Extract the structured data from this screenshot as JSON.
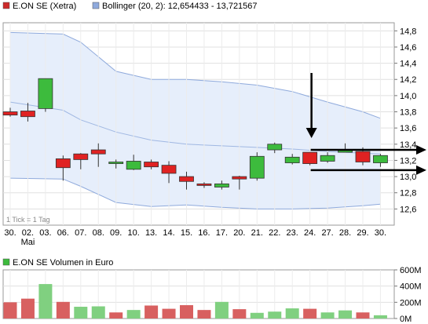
{
  "legend": {
    "price_label": "E.ON SE (Xetra)",
    "price_color": "#cc2a2a",
    "bollinger_label": "Bollinger (20, 2): 12,654433 - 13,721567",
    "bollinger_color": "#8faadc",
    "volume_label": "E.ON SE Volumen in Euro",
    "volume_color": "#3dbb3d"
  },
  "tick_note": "1 Tick = 1 Tag",
  "chart_data": [
    {
      "type": "candlestick",
      "title": "E.ON SE (Xetra)",
      "categories": [
        "30.",
        "02.",
        "03.",
        "06.",
        "07.",
        "08.",
        "09.",
        "10.",
        "13.",
        "14.",
        "15.",
        "16.",
        "17.",
        "20.",
        "21.",
        "22.",
        "23.",
        "24.",
        "27.",
        "28.",
        "29.",
        "30."
      ],
      "sub_labels": [
        "",
        "Mai",
        "",
        "",
        "",
        "",
        "",
        "",
        "",
        "",
        "",
        "",
        "",
        "",
        "",
        "",
        "",
        "",
        "",
        "",
        "",
        ""
      ],
      "ylim": [
        12.4,
        14.9
      ],
      "y_ticks": [
        12.6,
        12.8,
        13.0,
        13.2,
        13.4,
        13.6,
        13.8,
        14.0,
        14.2,
        14.4,
        14.6,
        14.8
      ],
      "y_tick_labels": [
        "12,6",
        "12,8",
        "13,0",
        "13,2",
        "13,4",
        "13,6",
        "13,8",
        "14,0",
        "14,2",
        "14,4",
        "14,6",
        "14,8"
      ],
      "candles": [
        {
          "open": 13.8,
          "high": 13.85,
          "low": 13.74,
          "close": 13.76
        },
        {
          "open": 13.81,
          "high": 13.91,
          "low": 13.68,
          "close": 13.74
        },
        {
          "open": 13.84,
          "high": 14.21,
          "low": 13.8,
          "close": 14.21
        },
        {
          "open": 13.22,
          "high": 13.26,
          "low": 12.95,
          "close": 13.11
        },
        {
          "open": 13.28,
          "high": 13.29,
          "low": 13.09,
          "close": 13.21
        },
        {
          "open": 13.33,
          "high": 13.41,
          "low": 13.12,
          "close": 13.28
        },
        {
          "open": 13.16,
          "high": 13.21,
          "low": 13.1,
          "close": 13.18
        },
        {
          "open": 13.09,
          "high": 13.27,
          "low": 13.08,
          "close": 13.19
        },
        {
          "open": 13.18,
          "high": 13.21,
          "low": 13.09,
          "close": 13.12
        },
        {
          "open": 13.14,
          "high": 13.19,
          "low": 12.92,
          "close": 13.04
        },
        {
          "open": 13.0,
          "high": 13.06,
          "low": 12.84,
          "close": 12.94
        },
        {
          "open": 12.91,
          "high": 12.93,
          "low": 12.86,
          "close": 12.89
        },
        {
          "open": 12.87,
          "high": 12.95,
          "low": 12.84,
          "close": 12.91
        },
        {
          "open": 13.0,
          "high": 13.01,
          "low": 12.84,
          "close": 12.97
        },
        {
          "open": 12.98,
          "high": 13.3,
          "low": 12.95,
          "close": 13.25
        },
        {
          "open": 13.33,
          "high": 13.42,
          "low": 13.29,
          "close": 13.4
        },
        {
          "open": 13.17,
          "high": 13.28,
          "low": 13.15,
          "close": 13.24
        },
        {
          "open": 13.3,
          "high": 13.3,
          "low": 13.14,
          "close": 13.16
        },
        {
          "open": 13.19,
          "high": 13.3,
          "low": 13.17,
          "close": 13.26
        },
        {
          "open": 13.3,
          "high": 13.41,
          "low": 13.3,
          "close": 13.33
        },
        {
          "open": 13.31,
          "high": 13.36,
          "low": 13.14,
          "close": 13.18
        },
        {
          "open": 13.17,
          "high": 13.28,
          "low": 13.12,
          "close": 13.26
        }
      ],
      "bollinger": {
        "x": [
          0,
          3,
          4,
          6,
          8,
          10,
          12,
          14,
          16,
          18,
          20,
          21
        ],
        "upper": [
          14.78,
          14.76,
          14.66,
          14.3,
          14.2,
          14.2,
          14.17,
          14.13,
          14.05,
          13.92,
          13.8,
          13.72
        ],
        "middle": [
          13.92,
          13.82,
          13.7,
          13.55,
          13.45,
          13.4,
          13.38,
          13.36,
          13.34,
          13.31,
          13.29,
          13.28
        ],
        "lower": [
          12.98,
          12.97,
          12.88,
          12.68,
          12.63,
          12.65,
          12.62,
          12.6,
          12.6,
          12.61,
          12.64,
          12.66
        ]
      },
      "annotations": {
        "vertical_arrow_index": 17,
        "resistance_value": 13.33,
        "support_value": 13.08
      },
      "up_color": "#3dbb3d",
      "down_color": "#e02222",
      "grid": true
    },
    {
      "type": "bar",
      "title": "E.ON SE Volumen in Euro",
      "ylim": [
        0,
        600
      ],
      "y_ticks": [
        0,
        200,
        400,
        600
      ],
      "y_tick_labels": [
        "0M",
        "200M",
        "400M",
        "600M"
      ],
      "values": [
        200,
        245,
        425,
        205,
        145,
        150,
        75,
        105,
        160,
        120,
        165,
        105,
        205,
        115,
        70,
        85,
        125,
        120,
        75,
        100,
        75,
        40
      ],
      "colors": [
        "red",
        "red",
        "green",
        "red",
        "green",
        "green",
        "red",
        "green",
        "red",
        "red",
        "red",
        "red",
        "green",
        "red",
        "green",
        "green",
        "green",
        "red",
        "green",
        "green",
        "red",
        "green"
      ],
      "grid": true
    }
  ]
}
